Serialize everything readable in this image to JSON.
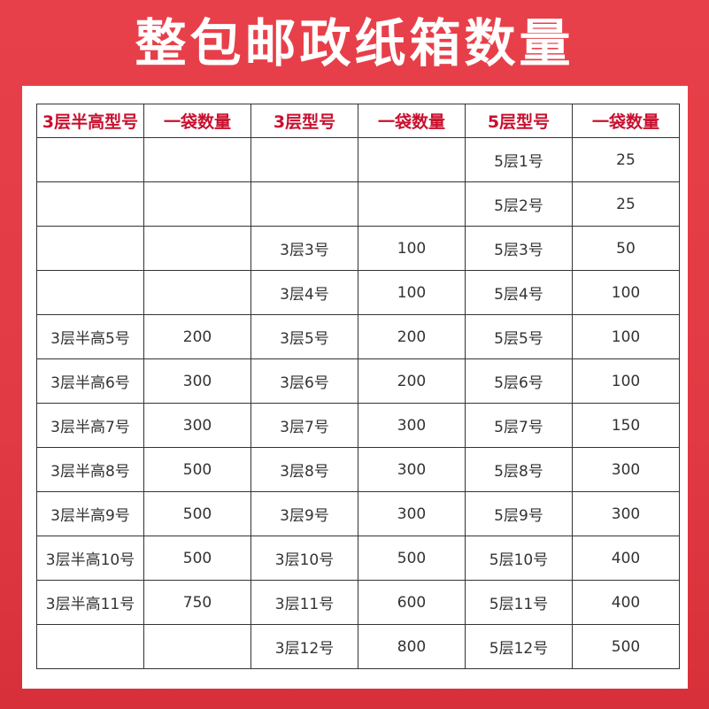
{
  "title": "整包邮政纸箱数量",
  "table": {
    "headers": [
      "3层半高型号",
      "一袋数量",
      "3层型号",
      "一袋数量",
      "5层型号",
      "一袋数量"
    ],
    "rows": [
      [
        "",
        "",
        "",
        "",
        "5层1号",
        "25"
      ],
      [
        "",
        "",
        "",
        "",
        "5层2号",
        "25"
      ],
      [
        "",
        "",
        "3层3号",
        "100",
        "5层3号",
        "50"
      ],
      [
        "",
        "",
        "3层4号",
        "100",
        "5层4号",
        "100"
      ],
      [
        "3层半高5号",
        "200",
        "3层5号",
        "200",
        "5层5号",
        "100"
      ],
      [
        "3层半高6号",
        "300",
        "3层6号",
        "200",
        "5层6号",
        "100"
      ],
      [
        "3层半高7号",
        "300",
        "3层7号",
        "300",
        "5层7号",
        "150"
      ],
      [
        "3层半高8号",
        "500",
        "3层8号",
        "300",
        "5层8号",
        "300"
      ],
      [
        "3层半高9号",
        "500",
        "3层9号",
        "300",
        "5层9号",
        "300"
      ],
      [
        "3层半高10号",
        "500",
        "3层10号",
        "500",
        "5层10号",
        "400"
      ],
      [
        "3层半高11号",
        "750",
        "3层11号",
        "600",
        "5层11号",
        "400"
      ],
      [
        "",
        "",
        "3层12号",
        "800",
        "5层12号",
        "500"
      ]
    ]
  },
  "colors": {
    "background": "#e23a44",
    "header_text": "#c8102e"
  }
}
